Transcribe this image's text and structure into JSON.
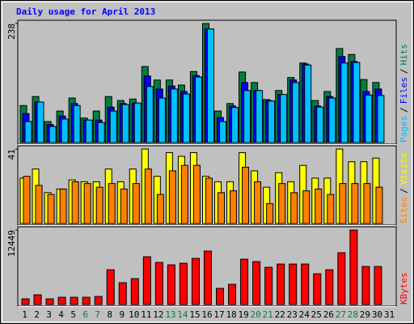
{
  "title": "Daily usage for April 2013",
  "legend_separator": "/",
  "categories": [
    "1",
    "2",
    "3",
    "4",
    "5",
    "6",
    "7",
    "8",
    "9",
    "10",
    "11",
    "12",
    "13",
    "14",
    "15",
    "16",
    "17",
    "18",
    "19",
    "20",
    "21",
    "22",
    "23",
    "24",
    "25",
    "26",
    "27",
    "28",
    "29",
    "30",
    "31"
  ],
  "category_colors": [
    "#000000",
    "#000000",
    "#000000",
    "#000000",
    "#000000",
    "#008040",
    "#008040",
    "#000000",
    "#000000",
    "#000000",
    "#000000",
    "#000000",
    "#008040",
    "#008040",
    "#000000",
    "#000000",
    "#000000",
    "#000000",
    "#000000",
    "#008040",
    "#008040",
    "#000000",
    "#000000",
    "#000000",
    "#000000",
    "#000000",
    "#008040",
    "#008040",
    "#000000",
    "#000000",
    "#000000"
  ],
  "chart_data": [
    {
      "type": "bar",
      "ylim": [
        0,
        238
      ],
      "yticks": [
        238
      ],
      "series": [
        {
          "name": "Hits",
          "color": "#008040",
          "values": [
            74,
            92,
            42,
            63,
            89,
            49,
            63,
            92,
            84,
            87,
            152,
            125,
            125,
            115,
            142,
            238,
            63,
            78,
            141,
            120,
            86,
            104,
            130,
            159,
            84,
            102,
            188,
            176,
            126,
            120,
            null
          ]
        },
        {
          "name": "Files",
          "color": "#0000ff",
          "values": [
            58,
            81,
            36,
            53,
            78,
            45,
            45,
            71,
            78,
            79,
            133,
            107,
            113,
            102,
            134,
            227,
            50,
            73,
            120,
            104,
            84,
            96,
            125,
            157,
            73,
            92,
            172,
            162,
            102,
            107,
            null
          ]
        },
        {
          "name": "Pages",
          "color": "#00c0ff",
          "values": [
            42,
            81,
            32,
            47,
            74,
            45,
            40,
            63,
            76,
            79,
            112,
            89,
            107,
            97,
            131,
            227,
            42,
            70,
            104,
            104,
            83,
            96,
            120,
            155,
            71,
            89,
            159,
            160,
            95,
            94,
            null
          ]
        }
      ]
    },
    {
      "type": "bar",
      "ylim": [
        0,
        41
      ],
      "yticks": [
        41
      ],
      "series": [
        {
          "name": "Visits",
          "color": "#ffff00",
          "values": [
            25,
            30,
            17,
            19,
            24,
            23,
            23,
            30,
            23,
            30,
            41,
            26,
            39,
            37,
            39,
            26,
            23,
            23,
            39,
            29,
            20,
            28,
            23,
            32,
            25,
            25,
            41,
            34,
            34,
            36,
            null
          ]
        },
        {
          "name": "Sites",
          "color": "#ff8000",
          "values": [
            26,
            21,
            16,
            19,
            23,
            22,
            20,
            22,
            19,
            22,
            30,
            16,
            29,
            32,
            32,
            25,
            17,
            18,
            31,
            23,
            11,
            22,
            17,
            18,
            19,
            16,
            22,
            22,
            22,
            20,
            null
          ]
        }
      ]
    },
    {
      "type": "bar",
      "ylim": [
        0,
        12449
      ],
      "yticks": [
        12449
      ],
      "series": [
        {
          "name": "KBytes",
          "color": "#ff0000",
          "values": [
            947,
            1624,
            947,
            1218,
            1218,
            1218,
            1353,
            5818,
            3653,
            4330,
            7984,
            7036,
            6630,
            6901,
            7713,
            8931,
            2706,
            3383,
            7578,
            7172,
            6225,
            6766,
            6766,
            6766,
            5142,
            5818,
            8660,
            12449,
            6360,
            6360,
            null
          ]
        }
      ]
    }
  ]
}
